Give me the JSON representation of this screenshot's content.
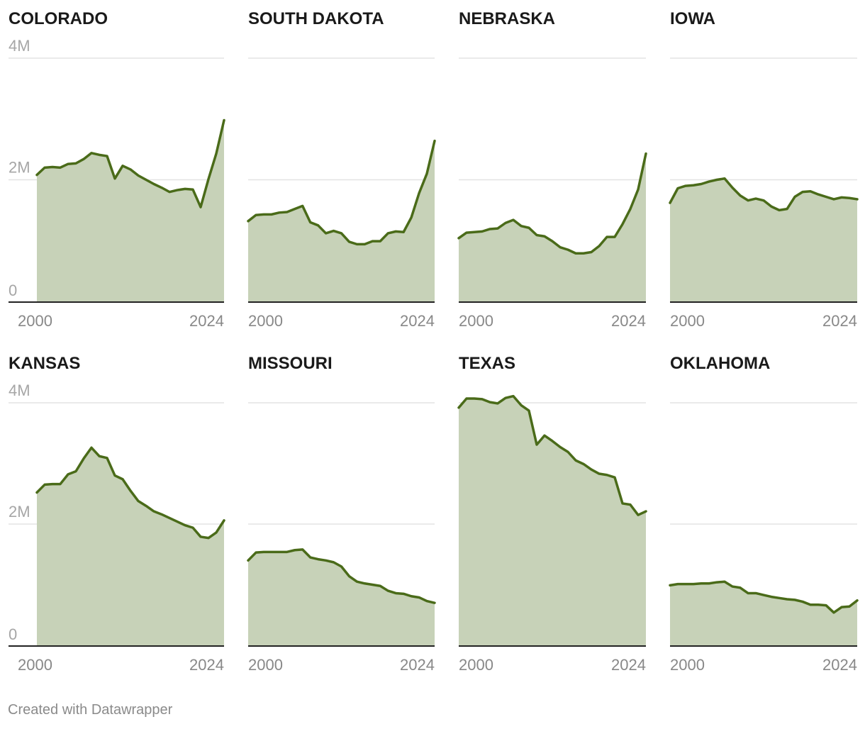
{
  "credit": "Created with Datawrapper",
  "colors": {
    "line": "#4a6b19",
    "area": "#c7d2b8",
    "grid": "#e3e3e3",
    "baseline": "#222222"
  },
  "chart_data": [
    {
      "type": "area",
      "title": "COLORADO",
      "x": [
        2000,
        2001,
        2002,
        2003,
        2004,
        2005,
        2006,
        2007,
        2008,
        2009,
        2010,
        2011,
        2012,
        2013,
        2014,
        2015,
        2016,
        2017,
        2018,
        2019,
        2020,
        2021,
        2022,
        2023,
        2024
      ],
      "values": [
        2.08,
        2.2,
        2.21,
        2.2,
        2.26,
        2.27,
        2.34,
        2.44,
        2.41,
        2.39,
        2.02,
        2.23,
        2.17,
        2.07,
        2.0,
        1.93,
        1.87,
        1.8,
        1.83,
        1.85,
        1.84,
        1.55,
        2.01,
        2.43,
        2.98
      ],
      "xticks": [
        "2000",
        "2024"
      ],
      "yticks": [
        "0",
        "2M",
        "4M"
      ],
      "ylim": [
        0,
        4
      ]
    },
    {
      "type": "area",
      "title": "SOUTH DAKOTA",
      "x": [
        2000,
        2001,
        2002,
        2003,
        2004,
        2005,
        2006,
        2007,
        2008,
        2009,
        2010,
        2011,
        2012,
        2013,
        2014,
        2015,
        2016,
        2017,
        2018,
        2019,
        2020,
        2021,
        2022,
        2023,
        2024
      ],
      "values": [
        1.32,
        1.42,
        1.43,
        1.43,
        1.46,
        1.47,
        1.52,
        1.57,
        1.3,
        1.25,
        1.12,
        1.16,
        1.12,
        0.98,
        0.94,
        0.94,
        0.99,
        0.99,
        1.12,
        1.15,
        1.14,
        1.38,
        1.78,
        2.1,
        2.64
      ],
      "xticks": [
        "2000",
        "2024"
      ],
      "yticks": [
        "0",
        "2M",
        "4M"
      ],
      "ylim": [
        0,
        4
      ]
    },
    {
      "type": "area",
      "title": "NEBRASKA",
      "x": [
        2000,
        2001,
        2002,
        2003,
        2004,
        2005,
        2006,
        2007,
        2008,
        2009,
        2010,
        2011,
        2012,
        2013,
        2014,
        2015,
        2016,
        2017,
        2018,
        2019,
        2020,
        2021,
        2022,
        2023,
        2024
      ],
      "values": [
        1.04,
        1.13,
        1.14,
        1.15,
        1.19,
        1.2,
        1.29,
        1.34,
        1.24,
        1.21,
        1.09,
        1.07,
        0.99,
        0.89,
        0.85,
        0.79,
        0.79,
        0.81,
        0.91,
        1.06,
        1.06,
        1.27,
        1.52,
        1.84,
        2.43
      ],
      "xticks": [
        "2000",
        "2024"
      ],
      "yticks": [
        "0",
        "2M",
        "4M"
      ],
      "ylim": [
        0,
        4
      ]
    },
    {
      "type": "area",
      "title": "IOWA",
      "x": [
        2000,
        2001,
        2002,
        2003,
        2004,
        2005,
        2006,
        2007,
        2008,
        2009,
        2010,
        2011,
        2012,
        2013,
        2014,
        2015,
        2016,
        2017,
        2018,
        2019,
        2020,
        2021,
        2022,
        2023,
        2024
      ],
      "values": [
        1.62,
        1.86,
        1.9,
        1.91,
        1.93,
        1.97,
        2.0,
        2.02,
        1.87,
        1.74,
        1.66,
        1.69,
        1.66,
        1.56,
        1.5,
        1.52,
        1.72,
        1.8,
        1.81,
        1.76,
        1.72,
        1.68,
        1.71,
        1.7,
        1.68
      ],
      "xticks": [
        "2000",
        "2024"
      ],
      "yticks": [
        "0",
        "2M",
        "4M"
      ],
      "ylim": [
        0,
        4
      ]
    },
    {
      "type": "area",
      "title": "KANSAS",
      "x": [
        2000,
        2001,
        2002,
        2003,
        2004,
        2005,
        2006,
        2007,
        2008,
        2009,
        2010,
        2011,
        2012,
        2013,
        2014,
        2015,
        2016,
        2017,
        2018,
        2019,
        2020,
        2021,
        2022,
        2023,
        2024
      ],
      "values": [
        2.52,
        2.65,
        2.66,
        2.66,
        2.82,
        2.87,
        3.08,
        3.26,
        3.12,
        3.09,
        2.8,
        2.74,
        2.55,
        2.38,
        2.3,
        2.21,
        2.16,
        2.1,
        2.04,
        1.98,
        1.94,
        1.79,
        1.77,
        1.86,
        2.06
      ],
      "xticks": [
        "2000",
        "2024"
      ],
      "yticks": [
        "0",
        "2M",
        "4M"
      ],
      "ylim": [
        0,
        4
      ]
    },
    {
      "type": "area",
      "title": "MISSOURI",
      "x": [
        2000,
        2001,
        2002,
        2003,
        2004,
        2005,
        2006,
        2007,
        2008,
        2009,
        2010,
        2011,
        2012,
        2013,
        2014,
        2015,
        2016,
        2017,
        2018,
        2019,
        2020,
        2021,
        2022,
        2023,
        2024
      ],
      "values": [
        1.4,
        1.53,
        1.54,
        1.54,
        1.54,
        1.54,
        1.57,
        1.58,
        1.45,
        1.42,
        1.4,
        1.37,
        1.3,
        1.14,
        1.05,
        1.02,
        1.0,
        0.98,
        0.9,
        0.86,
        0.85,
        0.81,
        0.79,
        0.73,
        0.7
      ],
      "xticks": [
        "2000",
        "2024"
      ],
      "yticks": [
        "0",
        "2M",
        "4M"
      ],
      "ylim": [
        0,
        4
      ]
    },
    {
      "type": "area",
      "title": "TEXAS",
      "x": [
        2000,
        2001,
        2002,
        2003,
        2004,
        2005,
        2006,
        2007,
        2008,
        2009,
        2010,
        2011,
        2012,
        2013,
        2014,
        2015,
        2016,
        2017,
        2018,
        2019,
        2020,
        2021,
        2022,
        2023,
        2024
      ],
      "values": [
        3.92,
        4.07,
        4.07,
        4.06,
        4.01,
        3.99,
        4.08,
        4.11,
        3.96,
        3.87,
        3.31,
        3.46,
        3.37,
        3.27,
        3.19,
        3.05,
        2.99,
        2.9,
        2.83,
        2.81,
        2.77,
        2.34,
        2.32,
        2.15,
        2.21
      ],
      "xticks": [
        "2000",
        "2024"
      ],
      "yticks": [
        "0",
        "2M",
        "4M"
      ],
      "ylim": [
        0,
        4
      ]
    },
    {
      "type": "area",
      "title": "OKLAHOMA",
      "x": [
        2000,
        2001,
        2002,
        2003,
        2004,
        2005,
        2006,
        2007,
        2008,
        2009,
        2010,
        2011,
        2012,
        2013,
        2014,
        2015,
        2016,
        2017,
        2018,
        2019,
        2020,
        2021,
        2022,
        2023,
        2024
      ],
      "values": [
        0.99,
        1.01,
        1.01,
        1.01,
        1.02,
        1.02,
        1.04,
        1.05,
        0.97,
        0.95,
        0.86,
        0.86,
        0.83,
        0.8,
        0.78,
        0.76,
        0.75,
        0.72,
        0.67,
        0.67,
        0.66,
        0.54,
        0.63,
        0.64,
        0.74
      ],
      "xticks": [
        "2000",
        "2024"
      ],
      "yticks": [
        "0",
        "2M",
        "4M"
      ],
      "ylim": [
        0,
        4
      ]
    }
  ]
}
